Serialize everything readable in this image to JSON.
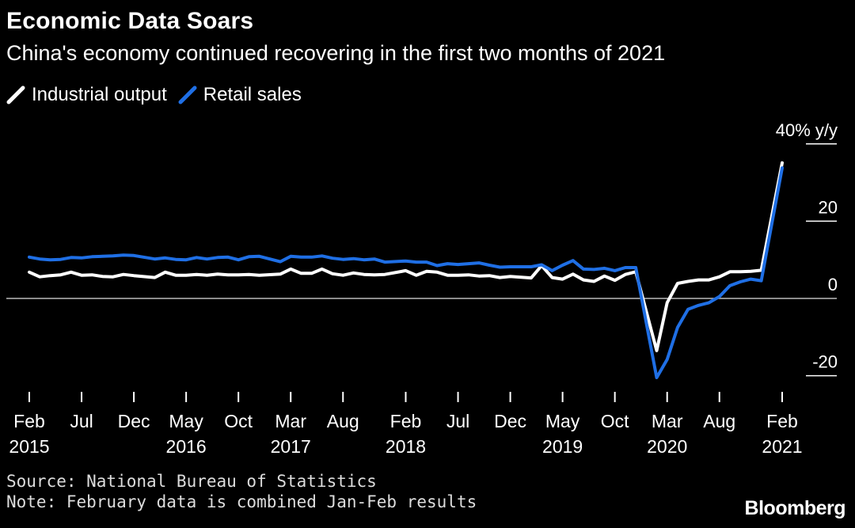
{
  "header": {
    "title": "Economic Data Soars",
    "subtitle": "China's economy continued recovering in the first two months of 2021"
  },
  "legend": [
    {
      "label": "Industrial output",
      "color": "#ffffff"
    },
    {
      "label": "Retail sales",
      "color": "#1f6fe5"
    }
  ],
  "footer": {
    "source": "Source: National Bureau of Statistics",
    "note": "Note: February data is combined Jan-Feb results",
    "brand": "Bloomberg"
  },
  "chart_data": {
    "type": "line",
    "title": "Economic Data Soars",
    "subtitle": "China's economy continued recovering in the first two months of 2021",
    "y_unit_label": "40% y/y",
    "ylim": [
      -20,
      40
    ],
    "yticks": [
      {
        "value": 40,
        "label": "40% y/y"
      },
      {
        "value": 20,
        "label": "20"
      },
      {
        "value": 0,
        "label": "0"
      },
      {
        "value": -20,
        "label": "-20"
      }
    ],
    "x": [
      "2015-02",
      "2015-03",
      "2015-04",
      "2015-05",
      "2015-06",
      "2015-07",
      "2015-08",
      "2015-09",
      "2015-10",
      "2015-11",
      "2015-12",
      "2016-02",
      "2016-03",
      "2016-04",
      "2016-05",
      "2016-06",
      "2016-07",
      "2016-08",
      "2016-09",
      "2016-10",
      "2016-11",
      "2016-12",
      "2017-02",
      "2017-03",
      "2017-04",
      "2017-05",
      "2017-06",
      "2017-07",
      "2017-08",
      "2017-09",
      "2017-10",
      "2017-11",
      "2017-12",
      "2018-02",
      "2018-03",
      "2018-04",
      "2018-05",
      "2018-06",
      "2018-07",
      "2018-08",
      "2018-09",
      "2018-10",
      "2018-11",
      "2018-12",
      "2019-02",
      "2019-03",
      "2019-04",
      "2019-05",
      "2019-06",
      "2019-07",
      "2019-08",
      "2019-09",
      "2019-10",
      "2019-11",
      "2019-12",
      "2020-02",
      "2020-03",
      "2020-04",
      "2020-05",
      "2020-06",
      "2020-07",
      "2020-08",
      "2020-09",
      "2020-10",
      "2020-11",
      "2020-12",
      "2021-02"
    ],
    "xticks": [
      {
        "month": "2015-02",
        "label": "Feb",
        "year": "2015"
      },
      {
        "month": "2015-07",
        "label": "Jul",
        "year": ""
      },
      {
        "month": "2015-12",
        "label": "Dec",
        "year": ""
      },
      {
        "month": "2016-05",
        "label": "May",
        "year": "2016"
      },
      {
        "month": "2016-10",
        "label": "Oct",
        "year": ""
      },
      {
        "month": "2017-03",
        "label": "Mar",
        "year": "2017"
      },
      {
        "month": "2017-08",
        "label": "Aug",
        "year": ""
      },
      {
        "month": "2018-02",
        "label": "Feb",
        "year": "2018"
      },
      {
        "month": "2018-07",
        "label": "Jul",
        "year": ""
      },
      {
        "month": "2018-12",
        "label": "Dec",
        "year": ""
      },
      {
        "month": "2019-05",
        "label": "May",
        "year": "2019"
      },
      {
        "month": "2019-10",
        "label": "Oct",
        "year": ""
      },
      {
        "month": "2020-03",
        "label": "Mar",
        "year": "2020"
      },
      {
        "month": "2020-08",
        "label": "Aug",
        "year": ""
      },
      {
        "month": "2021-02",
        "label": "Feb",
        "year": "2021"
      }
    ],
    "series": [
      {
        "name": "Industrial output",
        "color": "#ffffff",
        "values": [
          6.8,
          5.6,
          5.9,
          6.1,
          6.8,
          6.0,
          6.1,
          5.7,
          5.6,
          6.2,
          5.9,
          5.4,
          6.8,
          6.0,
          6.0,
          6.2,
          6.0,
          6.3,
          6.1,
          6.1,
          6.2,
          6.0,
          6.3,
          7.6,
          6.5,
          6.5,
          7.6,
          6.4,
          6.0,
          6.6,
          6.2,
          6.1,
          6.2,
          7.2,
          6.0,
          7.0,
          6.8,
          6.0,
          6.0,
          6.1,
          5.8,
          5.9,
          5.4,
          5.7,
          5.3,
          8.5,
          5.4,
          5.0,
          6.3,
          4.8,
          4.4,
          5.8,
          4.7,
          6.2,
          6.9,
          -13.5,
          -1.1,
          3.9,
          4.4,
          4.8,
          4.8,
          5.6,
          6.9,
          6.9,
          7.0,
          7.3,
          35.1
        ]
      },
      {
        "name": "Retail sales",
        "color": "#1f6fe5",
        "values": [
          10.7,
          10.2,
          10.0,
          10.1,
          10.6,
          10.5,
          10.8,
          10.9,
          11.0,
          11.2,
          11.1,
          10.2,
          10.5,
          10.1,
          10.0,
          10.6,
          10.2,
          10.6,
          10.7,
          10.0,
          10.8,
          10.9,
          9.5,
          10.9,
          10.7,
          10.7,
          11.0,
          10.4,
          10.1,
          10.3,
          10.0,
          10.2,
          9.4,
          9.7,
          9.4,
          9.4,
          8.5,
          9.0,
          8.8,
          9.0,
          9.2,
          8.6,
          8.1,
          8.2,
          8.2,
          8.7,
          7.2,
          8.6,
          9.8,
          7.6,
          7.5,
          7.8,
          7.2,
          8.0,
          8.0,
          -20.5,
          -15.8,
          -7.5,
          -2.8,
          -1.8,
          -1.1,
          0.5,
          3.3,
          4.3,
          5.0,
          4.6,
          33.8
        ]
      }
    ]
  }
}
